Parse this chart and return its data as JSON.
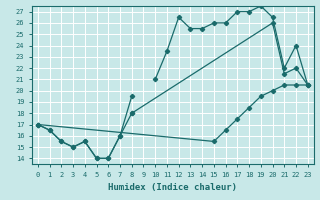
{
  "xlabel": "Humidex (Indice chaleur)",
  "ylabel": "",
  "xlim": [
    -0.5,
    23.5
  ],
  "ylim": [
    13.5,
    27.5
  ],
  "xticks": [
    0,
    1,
    2,
    3,
    4,
    5,
    6,
    7,
    8,
    9,
    10,
    11,
    12,
    13,
    14,
    15,
    16,
    17,
    18,
    19,
    20,
    21,
    22,
    23
  ],
  "yticks": [
    14,
    15,
    16,
    17,
    18,
    19,
    20,
    21,
    22,
    23,
    24,
    25,
    26,
    27
  ],
  "bg_color": "#c8e8e8",
  "line_color": "#1a6b6b",
  "grid_color": "#ffffff",
  "seg1a_x": [
    0,
    1,
    2,
    3,
    4,
    5,
    6,
    7,
    8
  ],
  "seg1a_y": [
    17.0,
    16.5,
    15.5,
    15.0,
    15.5,
    14.0,
    14.0,
    16.0,
    19.5
  ],
  "seg1b_x": [
    10,
    11,
    12,
    13,
    14,
    15,
    16,
    17,
    18,
    19,
    20,
    21,
    22,
    23
  ],
  "seg1b_y": [
    21.0,
    23.5,
    26.5,
    25.5,
    25.5,
    26.0,
    26.0,
    27.0,
    27.0,
    27.5,
    26.5,
    22.0,
    24.0,
    20.5
  ],
  "seg2a_x": [
    0,
    1,
    2,
    3,
    4,
    5,
    6,
    7,
    8
  ],
  "seg2a_y": [
    17.0,
    16.5,
    15.5,
    15.0,
    15.5,
    14.0,
    14.0,
    16.0,
    18.0
  ],
  "seg2b_x": [
    8,
    20,
    21,
    22,
    23
  ],
  "seg2b_y": [
    18.0,
    26.0,
    21.5,
    22.0,
    20.5
  ],
  "seg3_x": [
    0,
    15,
    16,
    17,
    18,
    19,
    20,
    21,
    22,
    23
  ],
  "seg3_y": [
    17.0,
    15.5,
    16.5,
    17.5,
    18.5,
    19.5,
    20.0,
    20.5,
    20.5,
    20.5
  ]
}
